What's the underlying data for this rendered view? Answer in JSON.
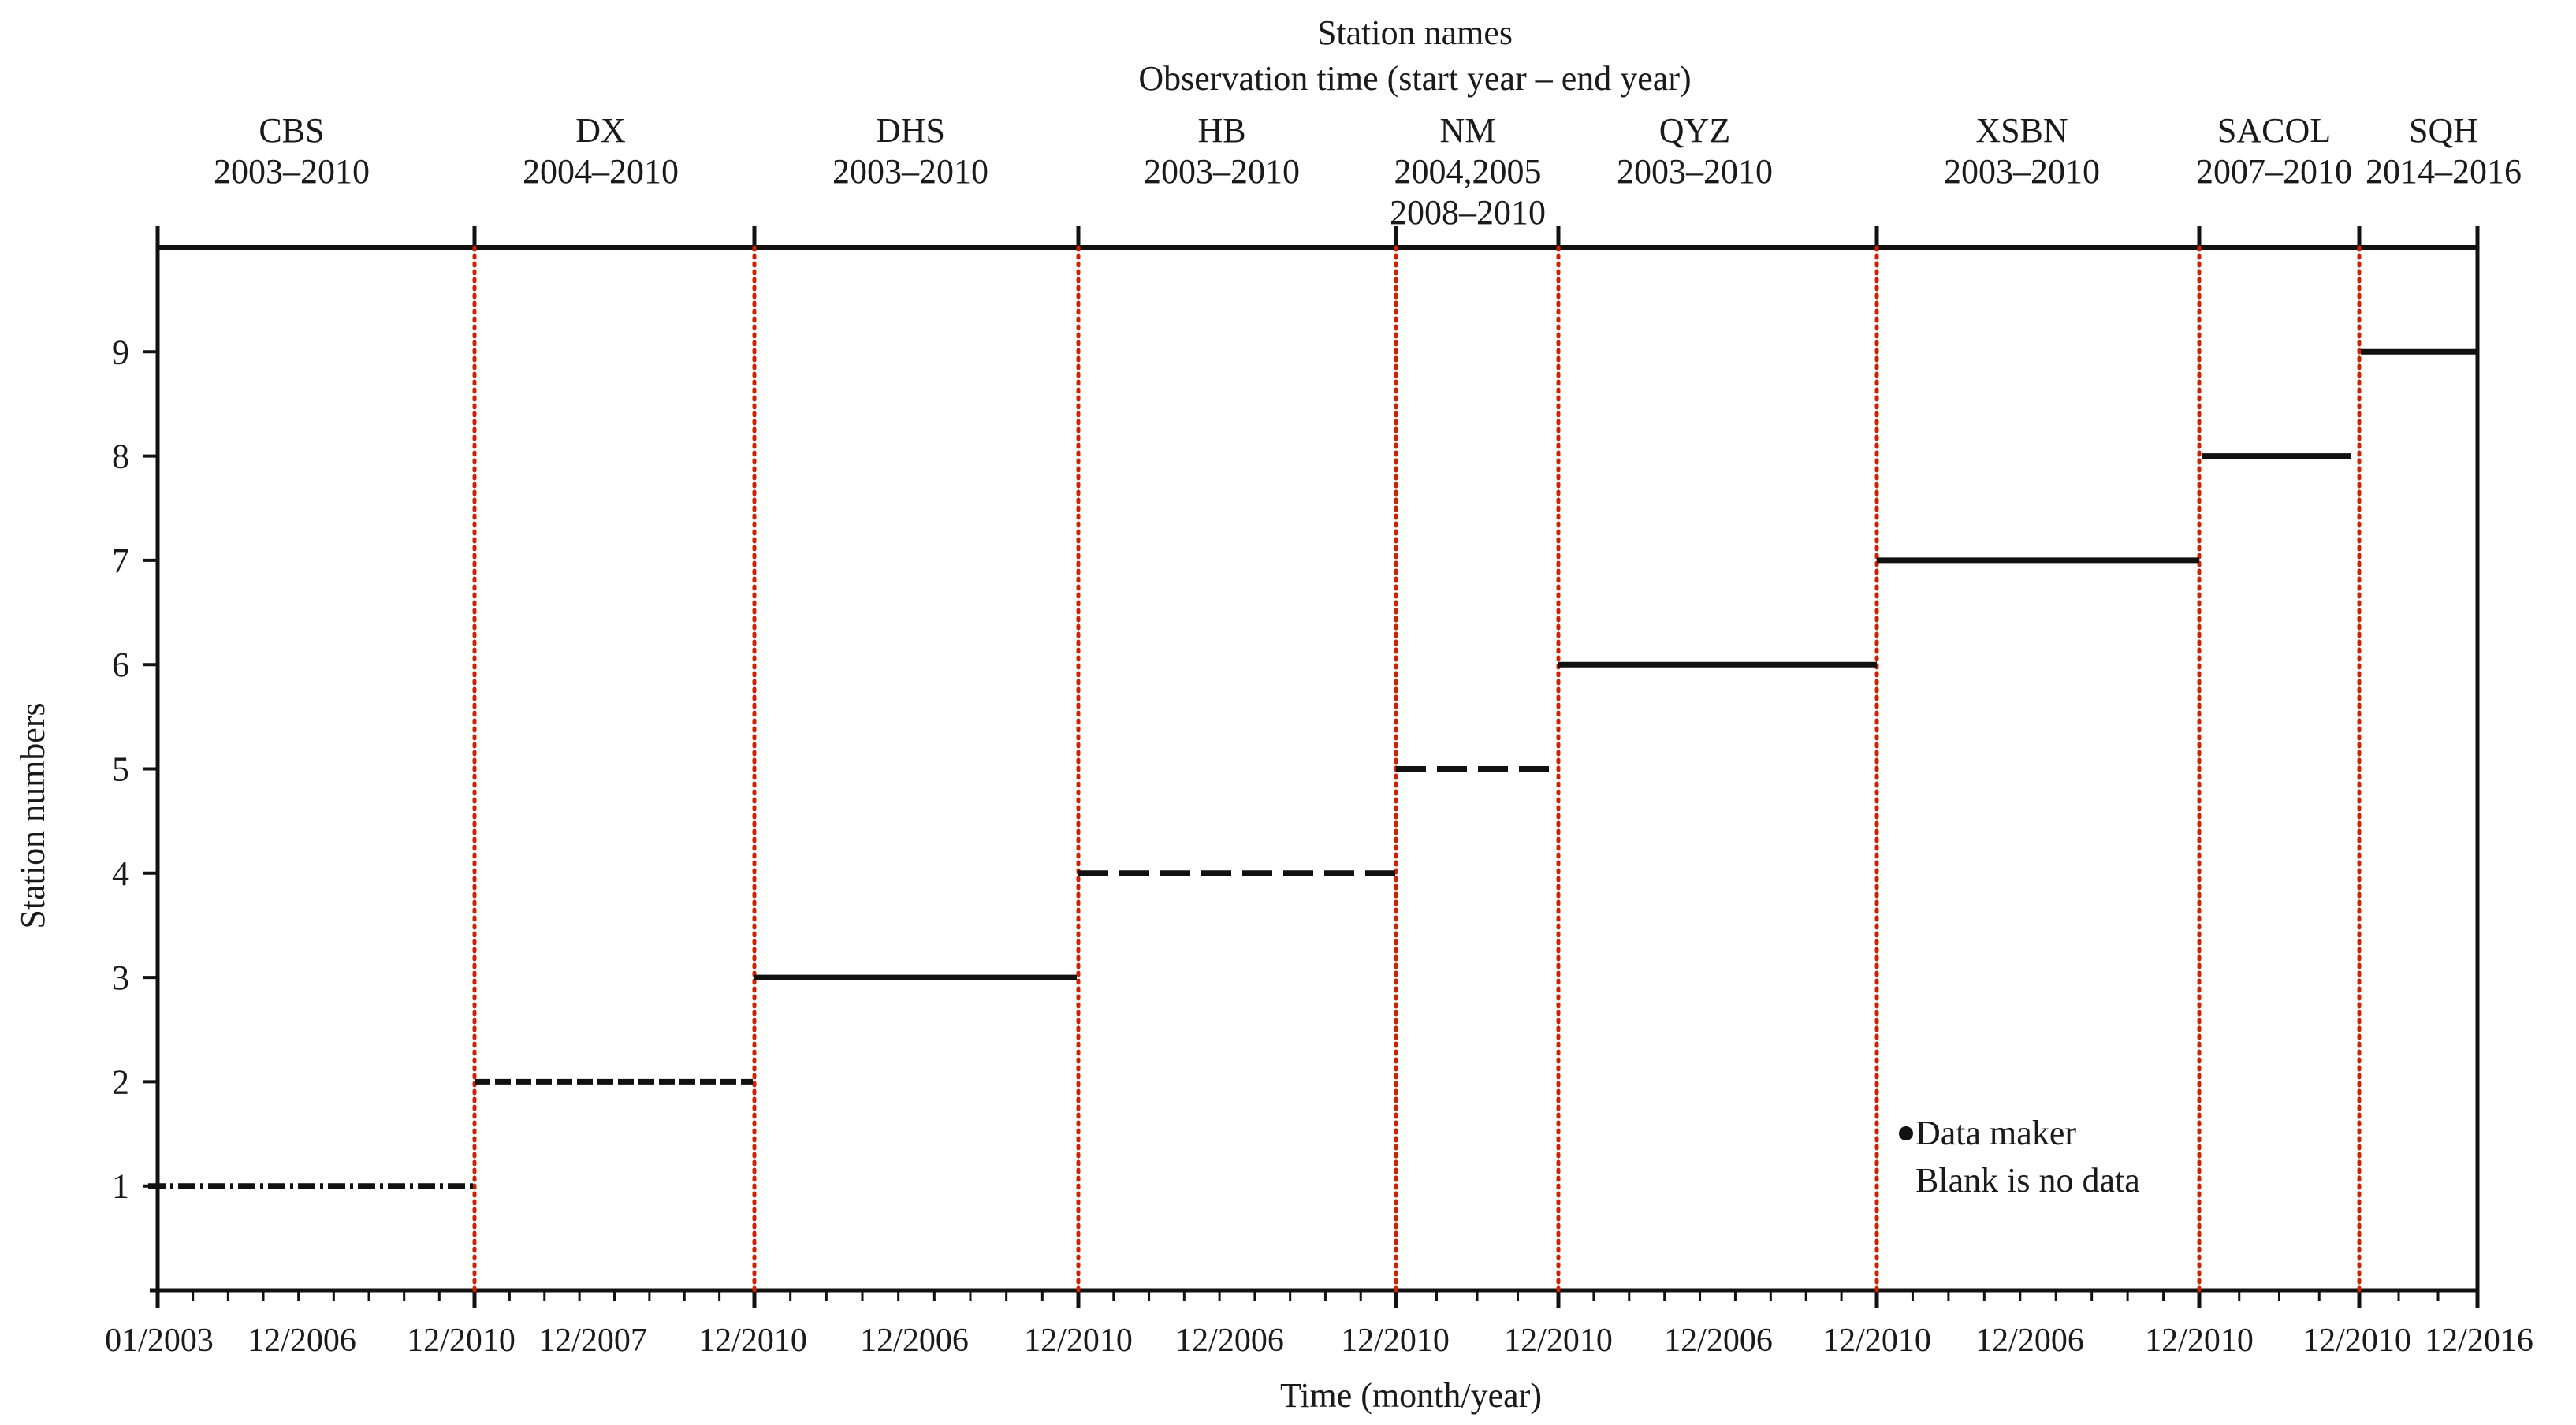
{
  "chart_data": {
    "type": "timeline",
    "title_lines": [
      "Station names",
      "Observation time (start year – end year)"
    ],
    "xlabel": "Time (month/year)",
    "ylabel": "Station numbers",
    "y_ticks": [
      "1",
      "2",
      "3",
      "4",
      "5",
      "6",
      "7",
      "8",
      "9"
    ],
    "ylim": [
      0,
      10
    ],
    "x_tick_labels": [
      "01/2003",
      "12/2006",
      "12/2010",
      "12/2007",
      "12/2010",
      "12/2006",
      "12/2010",
      "12/2006",
      "12/2010",
      "12/2010",
      "12/2006",
      "12/2010",
      "12/2006",
      "12/2010",
      "12/2010",
      "12/2016"
    ],
    "panel_separator_color": "#cc2200",
    "line_color": "#111111",
    "stations": [
      {
        "number": 1,
        "name": "CBS",
        "years": [
          "2003–2010"
        ],
        "pattern": "dashdot"
      },
      {
        "number": 2,
        "name": "DX",
        "years": [
          "2004–2010"
        ],
        "pattern": "dashed-fine"
      },
      {
        "number": 3,
        "name": "DHS",
        "years": [
          "2003–2010"
        ],
        "pattern": "solid"
      },
      {
        "number": 4,
        "name": "HB",
        "years": [
          "2003–2010"
        ],
        "pattern": "dashed"
      },
      {
        "number": 5,
        "name": "NM",
        "years": [
          "2004,2005",
          "2008–2010"
        ],
        "pattern": "dashed"
      },
      {
        "number": 6,
        "name": "QYZ",
        "years": [
          "2003–2010"
        ],
        "pattern": "solid"
      },
      {
        "number": 7,
        "name": "XSBN",
        "years": [
          "2003–2010"
        ],
        "pattern": "solid"
      },
      {
        "number": 8,
        "name": "SACOL",
        "years": [
          "2007–2010"
        ],
        "pattern": "solid"
      },
      {
        "number": 9,
        "name": "SQH",
        "years": [
          "2014–2016"
        ],
        "pattern": "solid"
      }
    ],
    "legend": {
      "marker": "•",
      "line1": "Data maker",
      "line2": "Blank is no data"
    }
  }
}
